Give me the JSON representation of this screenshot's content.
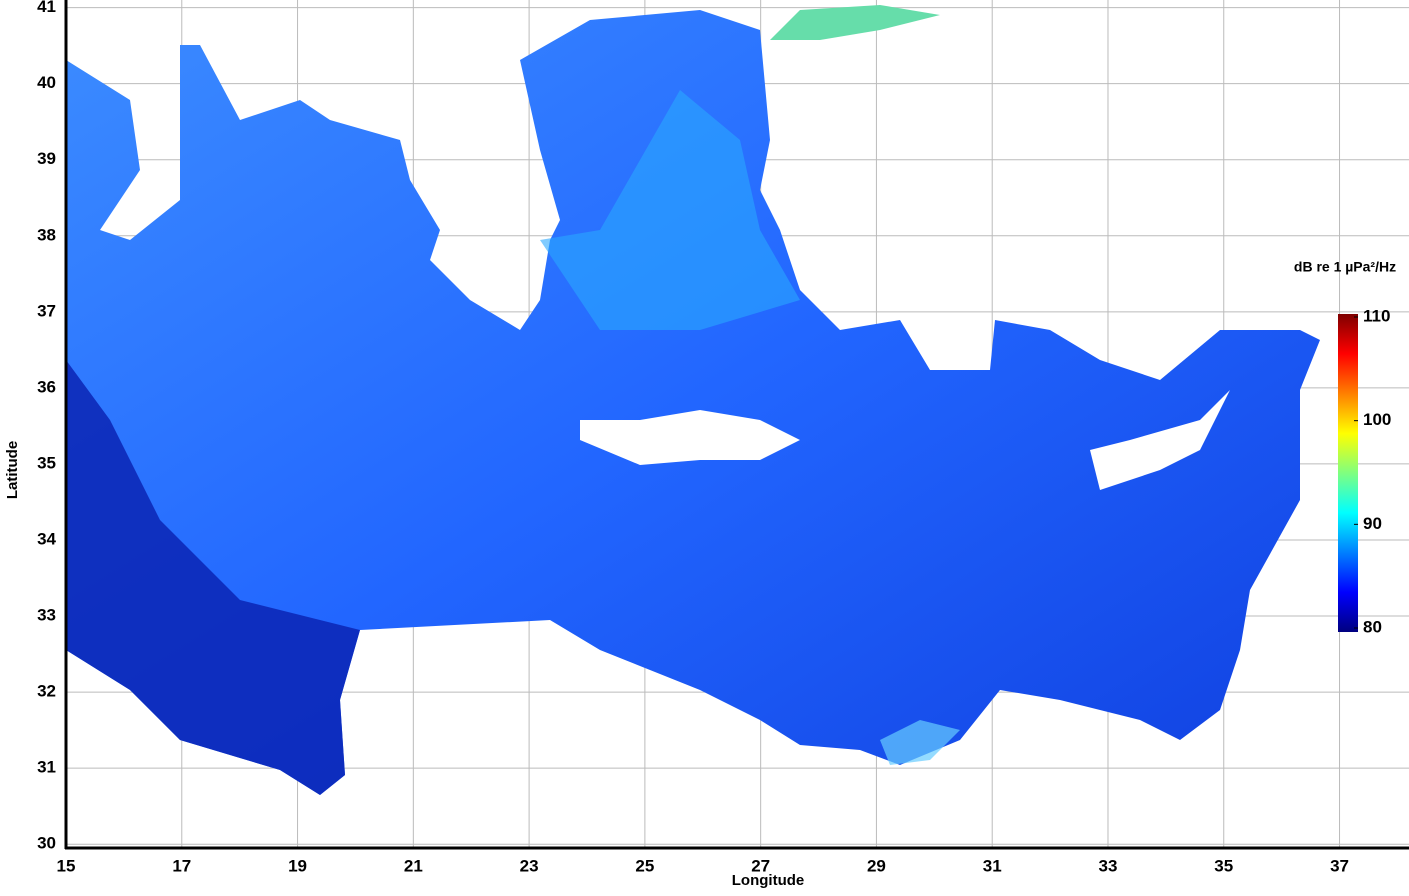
{
  "chart_data": {
    "type": "heatmap",
    "x_label": "Longitude",
    "y_label": "Latitude",
    "xlim": [
      15,
      38.2
    ],
    "ylim": [
      29.95,
      41.1
    ],
    "xticks": [
      15,
      17,
      19,
      21,
      23,
      25,
      27,
      29,
      31,
      33,
      35,
      37
    ],
    "yticks": [
      30,
      31,
      32,
      33,
      34,
      35,
      36,
      37,
      38,
      39,
      40,
      41
    ],
    "grid": true,
    "colorbar": {
      "label": "dB re 1 µPa²/Hz",
      "clim": [
        80,
        110
      ],
      "ticks": [
        80,
        90,
        100,
        110
      ],
      "colormap": "jet"
    }
  }
}
